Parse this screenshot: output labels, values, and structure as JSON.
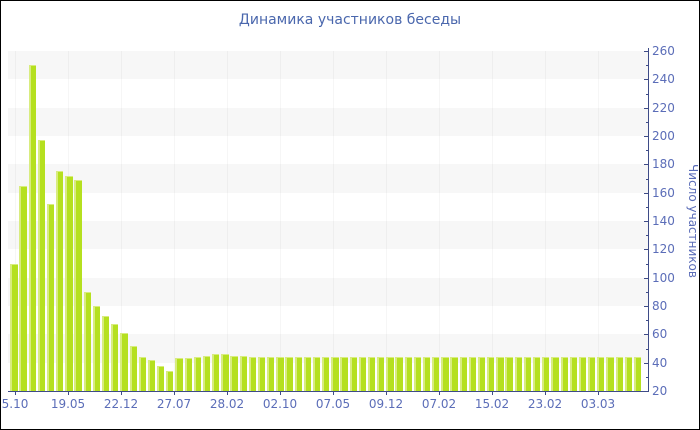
{
  "window": {
    "background": "#ffffff",
    "border_color": "#000000"
  },
  "chart_data": {
    "type": "bar",
    "title": "Динамика участников беседы",
    "ylabel": "Число участников",
    "xlabel": "",
    "ylim": [
      20,
      260
    ],
    "ytick_step": 20,
    "ytick_minor_step": 10,
    "ytick_labels": [
      "20",
      "40",
      "60",
      "80",
      "100",
      "120",
      "140",
      "160",
      "180",
      "200",
      "220",
      "240",
      "260"
    ],
    "xtick_labels": [
      "5.10",
      "19.05",
      "22.12",
      "27.07",
      "28.02",
      "02.10",
      "07.05",
      "09.12",
      "07.02",
      "15.02",
      "23.02",
      "03.03"
    ],
    "values": [
      110,
      165,
      250,
      197,
      152,
      175,
      172,
      169,
      90,
      80,
      73,
      67,
      61,
      52,
      44,
      42,
      38,
      34,
      43,
      43,
      44,
      45,
      46,
      46,
      45,
      45,
      44,
      44,
      44,
      44,
      44,
      44,
      44,
      44,
      44,
      44,
      44,
      44,
      44,
      44,
      44,
      44,
      44,
      44,
      44,
      44,
      44,
      44,
      44,
      44,
      44,
      44,
      44,
      44,
      44,
      44,
      44,
      44,
      44,
      44,
      44,
      44,
      44,
      44,
      44,
      44,
      44,
      44,
      44
    ],
    "legend": "none",
    "grid": "alternating-horizontal-stripes",
    "stripe_band_units": 20,
    "colors": {
      "bar": "#b5e01f",
      "bar_highlight": "#d8ec7f",
      "stripe": "#f7f7f7",
      "axis": "#3e4b87",
      "tick_label": "#5b6db8",
      "title": "#4a67ad"
    }
  }
}
